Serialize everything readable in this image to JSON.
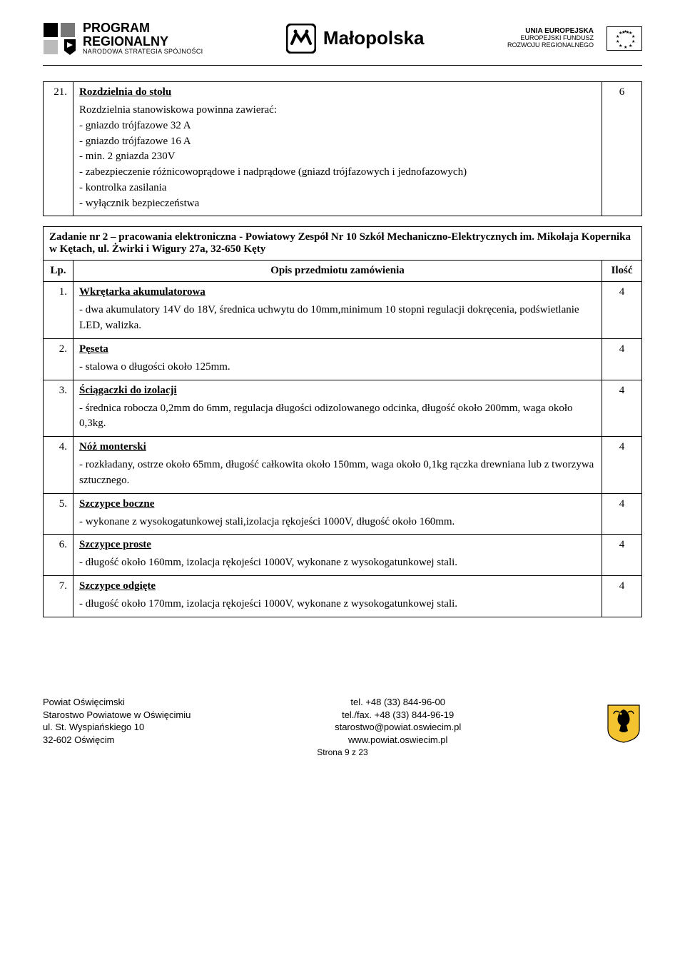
{
  "header": {
    "logo_program": {
      "line1": "PROGRAM",
      "line2": "REGIONALNY",
      "sub": "NARODOWA STRATEGIA SPÓJNOŚCI"
    },
    "logo_region": "Małopolska",
    "logo_eu": {
      "line1": "UNIA EUROPEJSKA",
      "line2": "EUROPEJSKI FUNDUSZ",
      "line3": "ROZWOJU REGIONALNEGO"
    }
  },
  "table_top": {
    "row": {
      "lp": "21.",
      "title": "Rozdzielnia do stołu",
      "desc": "Rozdzielnia stanowiskowa  powinna zawierać:\n- gniazdo trójfazowe 32 A\n- gniazdo trójfazowe 16 A\n- min. 2 gniazda 230V\n- zabezpieczenie różnicowoprądowe i nadprądowe (gniazd trójfazowych  i jednofazowych)\n- kontrolka zasilania\n- wyłącznik bezpieczeństwa",
      "qty": "6"
    }
  },
  "task_header": "Zadanie nr 2 – pracowania elektroniczna - Powiatowy Zespół Nr 10 Szkół Mechaniczno-Elektrycznych im. Mikołaja Kopernika w Kętach, ul. Żwirki i Wigury 27a, 32-650 Kęty",
  "columns": {
    "lp": "Lp.",
    "opis": "Opis przedmiotu zamówienia",
    "qty": "Ilość"
  },
  "items": [
    {
      "lp": "1.",
      "title": "Wkrętarka akumulatorowa",
      "desc": "- dwa akumulatory 14V do 18V, średnica uchwytu do 10mm,minimum 10 stopni regulacji dokręcenia, podświetlanie LED, walizka.",
      "qty": "4"
    },
    {
      "lp": "2.",
      "title": "Pęseta",
      "desc": "- stalowa o długości około 125mm.",
      "qty": "4"
    },
    {
      "lp": "3.",
      "title": "Ściągaczki do izolacji",
      "desc": "- średnica robocza 0,2mm do 6mm, regulacja długości odizolowanego odcinka, długość około 200mm, waga około 0,3kg.",
      "qty": "4"
    },
    {
      "lp": "4.",
      "title": "Nóż monterski",
      "desc": "- rozkładany, ostrze około 65mm, długość całkowita około 150mm, waga około  0,1kg rączka drewniana lub z tworzywa sztucznego.",
      "qty": "4"
    },
    {
      "lp": "5.",
      "title": "Szczypce boczne",
      "desc": "- wykonane z wysokogatunkowej stali,izolacja rękojeści 1000V, długość około 160mm.",
      "qty": "4"
    },
    {
      "lp": "6.",
      "title": "Szczypce proste",
      "desc": "-  długość około 160mm, izolacja rękojeści 1000V, wykonane z wysokogatunkowej stali.",
      "qty": "4"
    },
    {
      "lp": "7.",
      "title": "Szczypce odgięte",
      "desc": "- długość około 170mm, izolacja rękojeści 1000V, wykonane z wysokogatunkowej stali.",
      "qty": "4"
    }
  ],
  "footer": {
    "left": {
      "l1": "Powiat Oświęcimski",
      "l2": "Starostwo Powiatowe w Oświęcimiu",
      "l3": "ul. St. Wyspiańskiego 10",
      "l4": "32-602 Oświęcim"
    },
    "center": {
      "l1": "tel. +48 (33) 844-96-00",
      "l2": "tel./fax. +48 (33) 844-96-19",
      "l3": "starostwo@powiat.oswiecim.pl",
      "l4": "www.powiat.oswiecim.pl"
    },
    "page": "Strona 9 z 23"
  },
  "colors": {
    "text": "#000000",
    "border": "#000000",
    "background": "#ffffff"
  }
}
